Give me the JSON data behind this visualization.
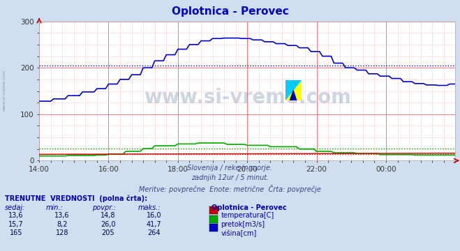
{
  "title": "Oplotnica - Perovec",
  "title_color": "#0000cc",
  "bg_color": "#d0dff0",
  "plot_bg_color": "#ffffff",
  "xlabel": "",
  "ylabel": "",
  "x_tick_labels": [
    "14:00",
    "16:00",
    "18:00",
    "20:00",
    "22:00",
    "00:00"
  ],
  "x_tick_positions": [
    0,
    24,
    48,
    72,
    96,
    120
  ],
  "ylim": [
    0,
    300
  ],
  "yticks": [
    0,
    100,
    200,
    300
  ],
  "subtitle1": "Slovenija / reke in morje.",
  "subtitle2": "zadnjih 12ur / 5 minut.",
  "subtitle3": "Meritve: povprečne  Enote: metrične  Črta: povprečje",
  "watermark": "www.si-vreme.com",
  "table_header": "TRENUTNE  VREDNOSTI  (polna črta):",
  "col_headers": [
    "sedaj:",
    "min.:",
    "povpr.:",
    "maks.:"
  ],
  "row1": [
    "13,6",
    "13,6",
    "14,8",
    "16,0"
  ],
  "row2": [
    "15,7",
    "8,2",
    "26,0",
    "41,7"
  ],
  "row3": [
    "165",
    "128",
    "205",
    "264"
  ],
  "legend_station": "Oplotnica - Perovec",
  "legend_items": [
    "temperatura[C]",
    "pretok[m3/s]",
    "višina[cm]"
  ],
  "legend_colors": [
    "#cc0000",
    "#00aa00",
    "#0000cc"
  ],
  "height_avg": 205,
  "flow_avg": 26.0,
  "temp_avg": 14.8
}
